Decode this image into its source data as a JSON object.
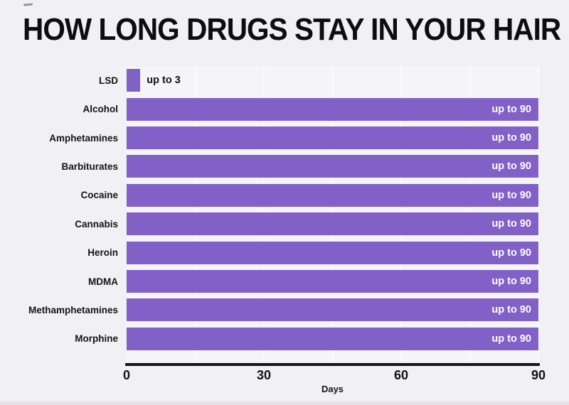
{
  "page": {
    "background": "#f1f0f2"
  },
  "chart_data": {
    "type": "bar",
    "orientation": "horizontal",
    "title": "HOW LONG DRUGS STAY IN YOUR HAIR",
    "categories": [
      "LSD",
      "Alcohol",
      "Amphetamines",
      "Barbiturates",
      "Cocaine",
      "Cannabis",
      "Heroin",
      "MDMA",
      "Methamphetamines",
      "Morphine"
    ],
    "values": [
      3,
      90,
      90,
      90,
      90,
      90,
      90,
      90,
      90,
      90
    ],
    "bar_labels": [
      "up to 3",
      "up to 90",
      "up to 90",
      "up to 90",
      "up to 90",
      "up to 90",
      "up to 90",
      "up to 90",
      "up to 90",
      "up to 90"
    ],
    "xlabel": "Days",
    "xlim": [
      0,
      90
    ],
    "xticks": [
      0,
      30,
      60,
      90
    ],
    "gridline_interval": 15,
    "grid": true,
    "legend": false,
    "colors": {
      "bar": "#8160c8",
      "label_inside": "#ffffff",
      "label_outside": "#101010",
      "axis_line": "#161616",
      "plot_background": "#f5f4f6",
      "page_background": "#f1f0f2",
      "gridline": "#fbfbfd",
      "text": "#0d0d0d"
    }
  }
}
